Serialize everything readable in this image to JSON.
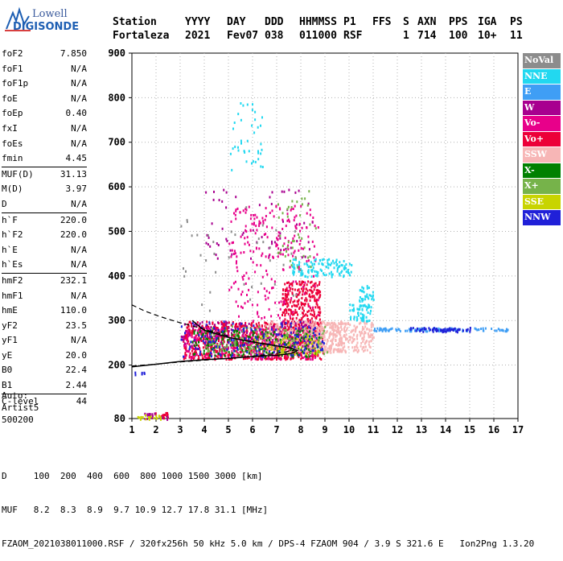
{
  "logo": {
    "line1": "Lowell",
    "line2": "DIGISONDE"
  },
  "header": {
    "labels": [
      "Station",
      "YYYY",
      "DAY",
      "DDD",
      "HHMMSS",
      "P1",
      "FFS",
      "S",
      "AXN",
      "PPS",
      "IGA",
      "PS"
    ],
    "values": [
      "Fortaleza",
      "2021",
      "Fev07",
      "038",
      "011000",
      "RSF",
      "",
      "1",
      "714",
      "100",
      "10+",
      "11"
    ]
  },
  "params": {
    "group1": [
      {
        "name": "foF2",
        "value": "7.850"
      },
      {
        "name": "foF1",
        "value": "N/A"
      },
      {
        "name": "foF1p",
        "value": "N/A"
      },
      {
        "name": "foE",
        "value": "N/A"
      },
      {
        "name": "foEp",
        "value": "0.40"
      },
      {
        "name": "fxI",
        "value": "N/A"
      },
      {
        "name": "foEs",
        "value": "N/A"
      },
      {
        "name": "fmin",
        "value": "4.45"
      }
    ],
    "group2": [
      {
        "name": "MUF(D)",
        "value": "31.13"
      },
      {
        "name": "M(D)",
        "value": "3.97"
      },
      {
        "name": "D",
        "value": "N/A"
      }
    ],
    "group3": [
      {
        "name": "h`F",
        "value": "220.0"
      },
      {
        "name": "h`F2",
        "value": "220.0"
      },
      {
        "name": "h`E",
        "value": "N/A"
      },
      {
        "name": "h`Es",
        "value": "N/A"
      }
    ],
    "group4": [
      {
        "name": "hmF2",
        "value": "232.1"
      },
      {
        "name": "hmF1",
        "value": "N/A"
      },
      {
        "name": "hmE",
        "value": "110.0"
      },
      {
        "name": "yF2",
        "value": "23.5"
      },
      {
        "name": "yF1",
        "value": "N/A"
      },
      {
        "name": "yE",
        "value": "20.0"
      },
      {
        "name": "B0",
        "value": "22.4"
      },
      {
        "name": "B1",
        "value": "2.44"
      }
    ],
    "group5": [
      {
        "name": "C-level",
        "value": "44"
      }
    ]
  },
  "auto": {
    "line1": "Auto:",
    "line2": "Artist5",
    "line3": "500200"
  },
  "legend": [
    {
      "label": "NoVal",
      "bg": "#8c8c8c",
      "fg": "#ffffff"
    },
    {
      "label": "NNE",
      "bg": "#22d8f0",
      "fg": "#ffffff"
    },
    {
      "label": "E",
      "bg": "#3f9ef5",
      "fg": "#ffffff"
    },
    {
      "label": "W",
      "bg": "#a8008f",
      "fg": "#ffffff"
    },
    {
      "label": "Vo-",
      "bg": "#e8008a",
      "fg": "#ffffff"
    },
    {
      "label": "Vo+",
      "bg": "#ec0038",
      "fg": "#ffffff"
    },
    {
      "label": "SSW",
      "bg": "#f7b6b6",
      "fg": "#ffffff"
    },
    {
      "label": "X-",
      "bg": "#008000",
      "fg": "#ffffff"
    },
    {
      "label": "X+",
      "bg": "#76b34a",
      "fg": "#ffffff"
    },
    {
      "label": "SSE",
      "bg": "#c8d400",
      "fg": "#ffffff"
    },
    {
      "label": "NNW",
      "bg": "#2020d8",
      "fg": "#ffffff"
    }
  ],
  "footer": {
    "line1": "D     100  200  400  600  800 1000 1500 3000 [km]",
    "line2": "MUF   8.2  8.3  8.9  9.7 10.9 12.7 17.8 31.1 [MHz]",
    "line3": "FZAOM_2021038011000.RSF / 320fx256h 50 kHz 5.0 km / DPS-4 FZAOM 904 / 3.9 S 321.6 E   Ion2Png 1.3.20"
  },
  "chart_data": {
    "type": "scatter",
    "title": "",
    "xlabel": "",
    "ylabel": "",
    "xlim": [
      1,
      17
    ],
    "ylim": [
      80,
      900
    ],
    "xticks": [
      1,
      2,
      3,
      4,
      5,
      6,
      7,
      8,
      9,
      10,
      11,
      12,
      13,
      14,
      15,
      16,
      17
    ],
    "yticks": [
      80,
      200,
      300,
      400,
      500,
      600,
      700,
      800,
      900
    ],
    "grid": true,
    "series": [
      {
        "name": "Vo+",
        "color": "#ec0038",
        "clusters": [
          {
            "x": [
              3.1,
              8.9
            ],
            "y": [
              215,
              300
            ],
            "n": 900
          },
          {
            "x": [
              7.2,
              8.8
            ],
            "y": [
              250,
              390
            ],
            "n": 350
          },
          {
            "x": [
              1.9,
              2.5
            ],
            "y": [
              82,
              96
            ],
            "n": 20
          }
        ]
      },
      {
        "name": "Vo-",
        "color": "#e8008a",
        "clusters": [
          {
            "x": [
              3.1,
              8.6
            ],
            "y": [
              215,
              285
            ],
            "n": 300
          },
          {
            "x": [
              5.0,
              8.7
            ],
            "y": [
              300,
              560
            ],
            "n": 180
          },
          {
            "x": [
              4.9,
              8.0
            ],
            "y": [
              440,
              560
            ],
            "n": 60
          }
        ]
      },
      {
        "name": "SSW",
        "color": "#f7b6b6",
        "clusters": [
          {
            "x": [
              6.5,
              9.8
            ],
            "y": [
              230,
              300
            ],
            "n": 350
          },
          {
            "x": [
              8.0,
              11.0
            ],
            "y": [
              230,
              300
            ],
            "n": 300
          }
        ]
      },
      {
        "name": "NNE",
        "color": "#22d8f0",
        "clusters": [
          {
            "x": [
              7.6,
              10.1
            ],
            "y": [
              400,
              440
            ],
            "n": 120
          },
          {
            "x": [
              10.0,
              10.9
            ],
            "y": [
              300,
              340
            ],
            "n": 60
          },
          {
            "x": [
              10.4,
              11.0
            ],
            "y": [
              345,
              380
            ],
            "n": 30
          },
          {
            "x": [
              5.0,
              6.4
            ],
            "y": [
              640,
              790
            ],
            "n": 40
          }
        ]
      },
      {
        "name": "E",
        "color": "#3f9ef5",
        "clusters": [
          {
            "x": [
              11.0,
              16.6
            ],
            "y": [
              278,
              285
            ],
            "n": 120
          }
        ]
      },
      {
        "name": "W",
        "color": "#a8008f",
        "clusters": [
          {
            "x": [
              3.0,
              8.5
            ],
            "y": [
              240,
              300
            ],
            "n": 150
          },
          {
            "x": [
              4.0,
              8.5
            ],
            "y": [
              440,
              600
            ],
            "n": 60
          },
          {
            "x": [
              1.5,
              2.5
            ],
            "y": [
              80,
              94
            ],
            "n": 20
          }
        ]
      },
      {
        "name": "X-",
        "color": "#008000",
        "clusters": [
          {
            "x": [
              3.4,
              8.8
            ],
            "y": [
              220,
              280
            ],
            "n": 200
          }
        ]
      },
      {
        "name": "X+",
        "color": "#76b34a",
        "clusters": [
          {
            "x": [
              4.0,
              9.2
            ],
            "y": [
              225,
              290
            ],
            "n": 150
          },
          {
            "x": [
              7.0,
              8.6
            ],
            "y": [
              420,
              600
            ],
            "n": 40
          }
        ]
      },
      {
        "name": "SSE",
        "color": "#c8d400",
        "clusters": [
          {
            "x": [
              6.0,
              8.8
            ],
            "y": [
              225,
              270
            ],
            "n": 60
          },
          {
            "x": [
              1.2,
              2.2
            ],
            "y": [
              80,
              90
            ],
            "n": 20
          }
        ]
      },
      {
        "name": "NNW",
        "color": "#2020d8",
        "clusters": [
          {
            "x": [
              3.0,
              9.0
            ],
            "y": [
              220,
              300
            ],
            "n": 150
          },
          {
            "x": [
              12.5,
              15.0
            ],
            "y": [
              276,
              286
            ],
            "n": 60
          },
          {
            "x": [
              1.1,
              1.5
            ],
            "y": [
              180,
              186
            ],
            "n": 6
          }
        ]
      },
      {
        "name": "NoVal",
        "color": "#8c8c8c",
        "clusters": [
          {
            "x": [
              3.0,
              8.0
            ],
            "y": [
              300,
              560
            ],
            "n": 40
          }
        ]
      }
    ],
    "profile_solid": {
      "x": [
        1.0,
        2.0,
        3.0,
        4.0,
        5.0,
        6.0,
        7.0,
        7.6,
        7.85,
        7.6,
        7.0,
        6.0,
        5.0,
        4.0,
        3.5
      ],
      "y": [
        196,
        202,
        208,
        212,
        215,
        219,
        222,
        226,
        232,
        238,
        243,
        252,
        262,
        278,
        300
      ]
    },
    "profile_dashed": {
      "x": [
        1.0,
        2.0,
        3.0,
        4.0,
        5.0,
        6.0,
        7.0,
        7.8
      ],
      "y": [
        198,
        202,
        207,
        211,
        215,
        220,
        226,
        234
      ]
    },
    "profile_dashed_upper": {
      "x": [
        1.0,
        1.5,
        2.0,
        2.5,
        3.0,
        3.5,
        4.0,
        4.5,
        5.0
      ],
      "y": [
        335,
        322,
        312,
        303,
        295,
        288,
        280,
        273,
        265
      ]
    }
  }
}
